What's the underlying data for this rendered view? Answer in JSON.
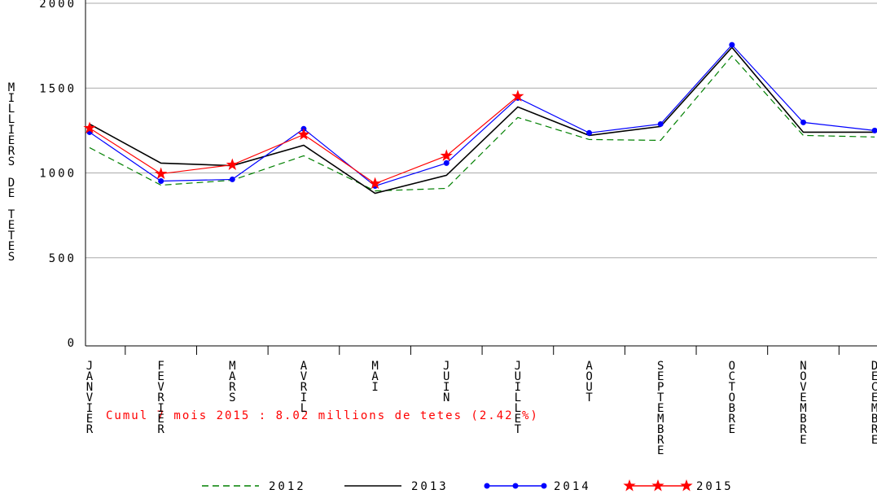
{
  "chart_data": {
    "type": "line",
    "y_label": "MILLIERS DE TETES",
    "annotation": "Cumul 7 mois 2015 : 8.02 millions de tetes (2.42 %)",
    "categories": [
      "JANVIER",
      "FEVRIER",
      "MARS",
      "AVRIL",
      "MAI",
      "JUIN",
      "JUILLET",
      "AOUT",
      "SEPTEMBRE",
      "OCTOBRE",
      "NOVEMBRE",
      "DECEMBRE"
    ],
    "series": [
      {
        "name": "2012",
        "color": "#008000",
        "style": "dashed",
        "marker": "none",
        "values": [
          1149,
          928,
          957,
          1101,
          894,
          909,
          1327,
          1197,
          1192,
          1690,
          1221,
          1212
        ]
      },
      {
        "name": "2013",
        "color": "#000000",
        "style": "solid",
        "marker": "none",
        "values": [
          1288,
          1058,
          1043,
          1163,
          880,
          986,
          1389,
          1221,
          1274,
          1740,
          1240,
          1240
        ]
      },
      {
        "name": "2014",
        "color": "#0000ff",
        "style": "solid",
        "marker": "circle",
        "values": [
          1240,
          952,
          962,
          1260,
          923,
          1058,
          1442,
          1236,
          1288,
          1755,
          1298,
          1250
        ]
      },
      {
        "name": "2015",
        "color": "#ff0000",
        "style": "solid",
        "marker": "star",
        "values": [
          1264,
          995,
          1048,
          1226,
          937,
          1101,
          1452,
          null,
          null,
          null,
          null,
          null
        ]
      }
    ],
    "ylim": [
      0,
      2000
    ],
    "yticks": [
      0,
      500,
      1000,
      1500,
      2000
    ],
    "grid": true,
    "legend": "bottom"
  }
}
